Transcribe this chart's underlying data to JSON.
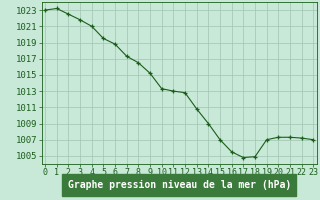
{
  "x": [
    0,
    1,
    2,
    3,
    4,
    5,
    6,
    7,
    8,
    9,
    10,
    11,
    12,
    13,
    14,
    15,
    16,
    17,
    18,
    19,
    20,
    21,
    22,
    23
  ],
  "y": [
    1023,
    1023.2,
    1022.5,
    1021.8,
    1021,
    1019.5,
    1018.8,
    1017.3,
    1016.5,
    1015.2,
    1013.3,
    1013,
    1012.8,
    1010.8,
    1009,
    1007,
    1005.5,
    1004.8,
    1004.9,
    1007,
    1007.3,
    1007.3,
    1007.2,
    1007
  ],
  "line_color": "#1a5e1a",
  "marker_color": "#1a5e1a",
  "bg_color": "#c8e8d8",
  "grid_color": "#a0c4b0",
  "xlabel": "Graphe pression niveau de la mer (hPa)",
  "xlabel_bg": "#3a7a3a",
  "xlabel_color": "#ffffff",
  "tick_color": "#1a5e1a",
  "font_size": 6.5,
  "ylim_min": 1004,
  "ylim_max": 1024,
  "ytick_values": [
    1005,
    1007,
    1009,
    1011,
    1013,
    1015,
    1017,
    1019,
    1021,
    1023
  ],
  "xtick_labels": [
    "0",
    "1",
    "2",
    "3",
    "4",
    "5",
    "6",
    "7",
    "8",
    "9",
    "10",
    "11",
    "12",
    "13",
    "14",
    "15",
    "16",
    "17",
    "18",
    "19",
    "20",
    "21",
    "22",
    "23"
  ]
}
